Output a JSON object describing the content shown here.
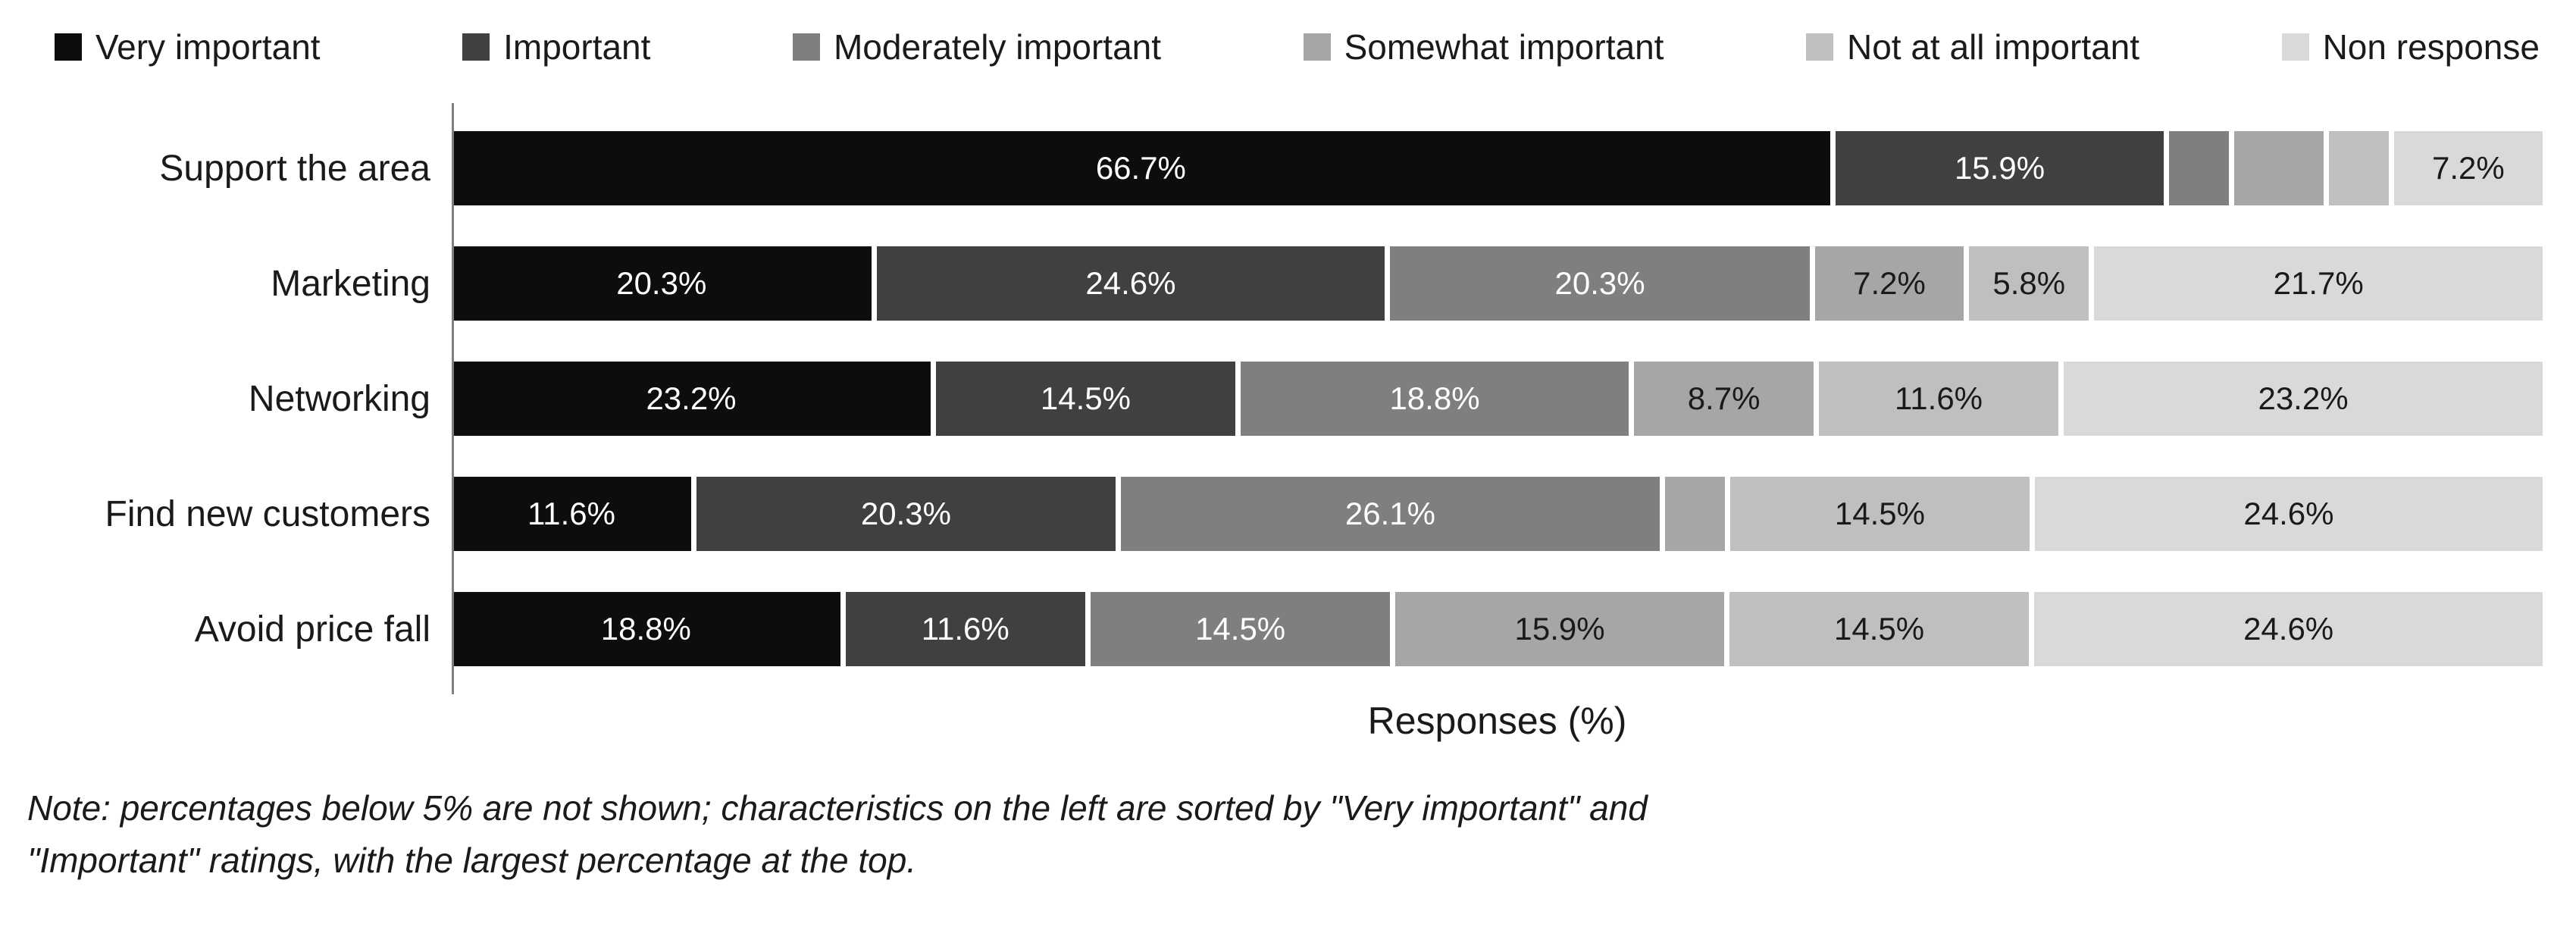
{
  "chart_data": {
    "type": "bar",
    "orientation": "horizontal",
    "stacked": true,
    "title": "",
    "xlabel": "Responses (%)",
    "xlim": [
      0,
      100
    ],
    "grid": false,
    "legend_position": "top",
    "label_min_percent_shown": 5,
    "value_suffix": "%",
    "categories": [
      "Support the area",
      "Marketing",
      "Networking",
      "Find new customers",
      "Avoid price fall"
    ],
    "series": [
      {
        "name": "Very important",
        "color": "#0d0d0d",
        "label_color": "#ffffff",
        "values": [
          66.7,
          20.3,
          23.2,
          11.6,
          18.8
        ]
      },
      {
        "name": "Important",
        "color": "#404040",
        "label_color": "#ffffff",
        "values": [
          15.9,
          24.6,
          14.5,
          20.3,
          11.6
        ]
      },
      {
        "name": "Moderately important",
        "color": "#7f7f7f",
        "label_color": "#ffffff",
        "values": [
          2.9,
          20.3,
          18.8,
          26.1,
          14.5
        ]
      },
      {
        "name": "Somewhat important",
        "color": "#a6a6a6",
        "label_color": "#1a1a1a",
        "values": [
          4.3,
          7.2,
          8.7,
          2.9,
          15.9
        ]
      },
      {
        "name": "Not at all important",
        "color": "#bfbfbf",
        "label_color": "#1a1a1a",
        "values": [
          2.9,
          5.8,
          11.6,
          14.5,
          14.5
        ]
      },
      {
        "name": "Non response",
        "color": "#d9d9d9",
        "label_color": "#1a1a1a",
        "values": [
          7.2,
          21.7,
          23.2,
          24.6,
          24.6
        ]
      }
    ]
  },
  "note": {
    "line1": "Note: percentages below 5% are not shown; characteristics on the left are sorted by \"Very important\" and",
    "line2": "\"Important\" ratings, with the largest percentage at the top."
  }
}
